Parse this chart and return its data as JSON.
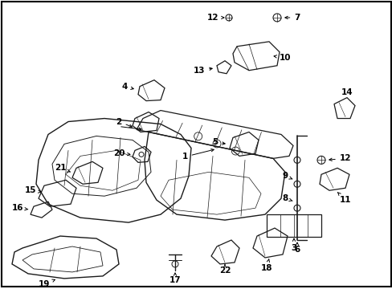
{
  "background_color": "#ffffff",
  "border_color": "#000000",
  "figsize": [
    4.89,
    3.6
  ],
  "dpi": 100,
  "line_color": "#1a1a1a",
  "label_color": "#000000",
  "lw_main": 1.0,
  "lw_thin": 0.6,
  "fontsize": 7.5
}
